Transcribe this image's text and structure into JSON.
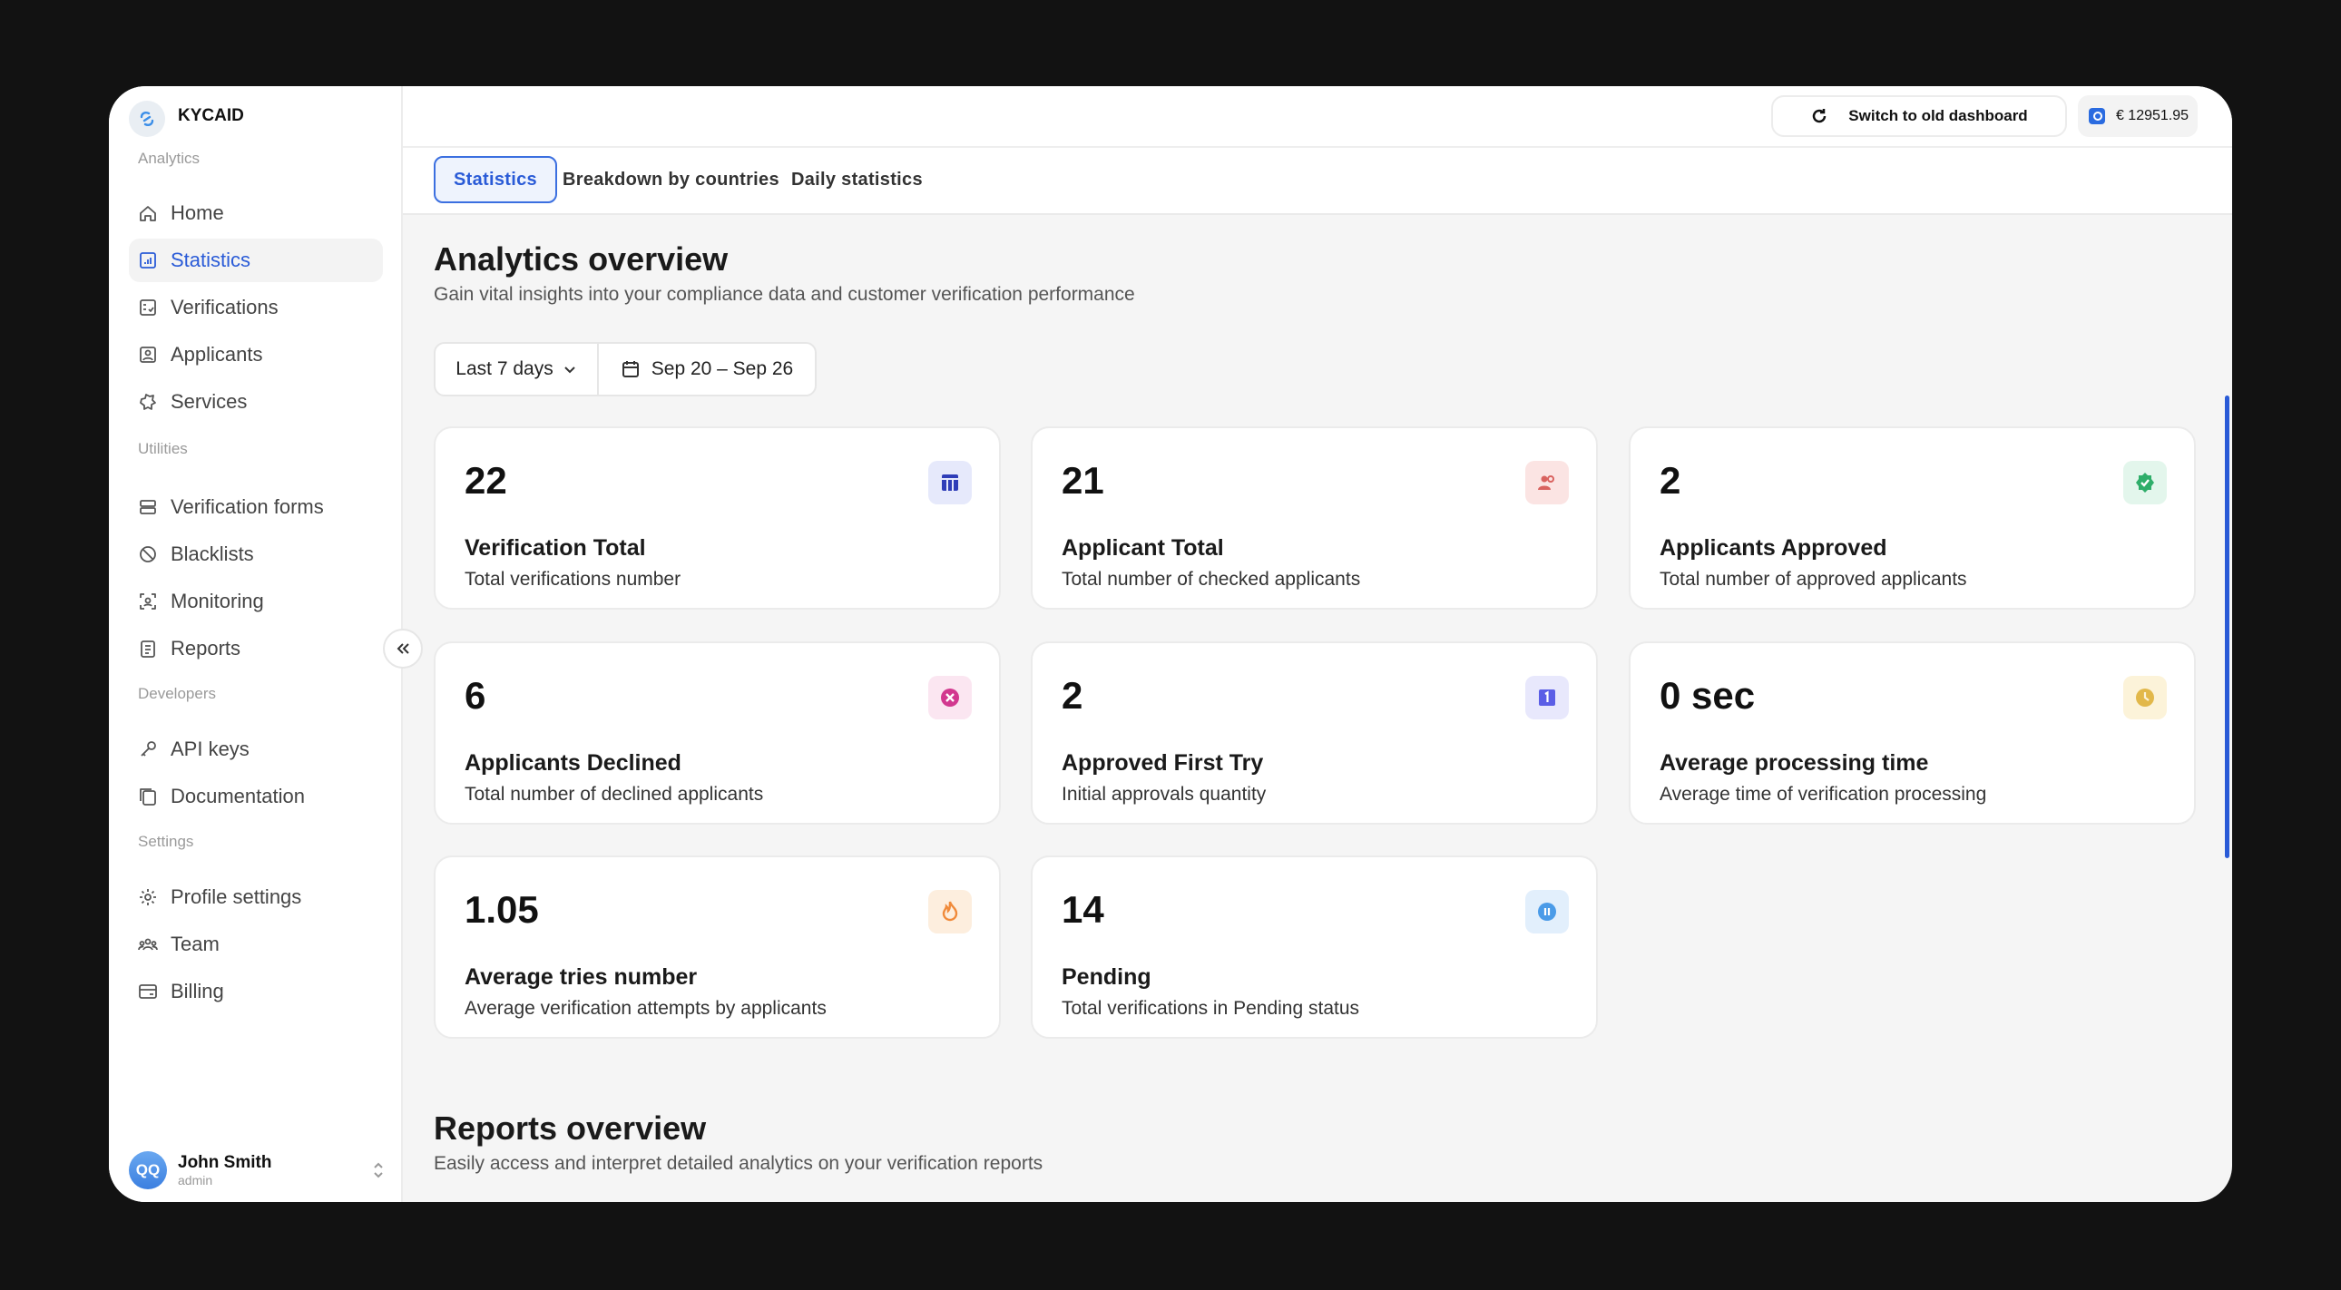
{
  "app": {
    "brand": "KYCAID"
  },
  "sidebar": {
    "sections": [
      {
        "label": "Analytics",
        "items": [
          {
            "label": "Home",
            "icon": "home-icon"
          },
          {
            "label": "Statistics",
            "icon": "statistics-icon",
            "active": true
          },
          {
            "label": "Verifications",
            "icon": "checklist-icon"
          },
          {
            "label": "Applicants",
            "icon": "applicant-icon"
          },
          {
            "label": "Services",
            "icon": "puzzle-icon"
          }
        ]
      },
      {
        "label": "Utilities",
        "items": [
          {
            "label": "Verification forms",
            "icon": "forms-icon"
          },
          {
            "label": "Blacklists",
            "icon": "block-icon"
          },
          {
            "label": "Monitoring",
            "icon": "monitoring-icon"
          },
          {
            "label": "Reports",
            "icon": "report-icon"
          }
        ]
      },
      {
        "label": "Developers",
        "items": [
          {
            "label": "API keys",
            "icon": "key-icon"
          },
          {
            "label": "Documentation",
            "icon": "docs-icon"
          }
        ]
      },
      {
        "label": "Settings",
        "items": [
          {
            "label": "Profile settings",
            "icon": "gear-icon"
          },
          {
            "label": "Team",
            "icon": "team-icon"
          },
          {
            "label": "Billing",
            "icon": "card-icon"
          }
        ]
      }
    ],
    "user": {
      "initials": "QQ",
      "name": "John Smith",
      "role": "admin"
    }
  },
  "header": {
    "switch_label": "Switch to old dashboard",
    "balance": "€ 12951.95"
  },
  "tabs": [
    {
      "label": "Statistics",
      "active": true
    },
    {
      "label": "Breakdown by countries"
    },
    {
      "label": "Daily statistics"
    }
  ],
  "main": {
    "title": "Analytics overview",
    "subtitle": "Gain vital insights into your compliance data and customer verification performance",
    "range": "Last 7 days",
    "dates": "Sep 20 – Sep 26",
    "cards": [
      {
        "value": "22",
        "title": "Verification Total",
        "desc": "Total verifications number",
        "icon": "table-icon",
        "color": "#2f3db8",
        "bg": "#e6e9fb"
      },
      {
        "value": "21",
        "title": "Applicant Total",
        "desc": "Total number of checked applicants",
        "icon": "users-icon",
        "color": "#d9625f",
        "bg": "#fbe4e3"
      },
      {
        "value": "2",
        "title": "Applicants Approved",
        "desc": "Total number of approved applicants",
        "icon": "verified-icon",
        "color": "#2fae6a",
        "bg": "#e3f6ec"
      },
      {
        "value": "6",
        "title": "Applicants Declined",
        "desc": "Total number of declined applicants",
        "icon": "declined-icon",
        "color": "#d2388f",
        "bg": "#fbe6f1"
      },
      {
        "value": "2",
        "title": "Approved First Try",
        "desc": "Initial approvals quantity",
        "icon": "first-try-icon",
        "color": "#5b5ee6",
        "bg": "#e8e8fc"
      },
      {
        "value": "0 sec",
        "title": "Average processing time",
        "desc": "Average time of verification processing",
        "icon": "clock-icon",
        "color": "#e2b84a",
        "bg": "#fcf3d9"
      },
      {
        "value": "1.05",
        "title": "Average tries number",
        "desc": "Average verification attempts by applicants",
        "icon": "fire-icon",
        "color": "#f08a3a",
        "bg": "#fdeede"
      },
      {
        "value": "14",
        "title": "Pending",
        "desc": "Total verifications in Pending status",
        "icon": "pause-icon",
        "color": "#4a9be8",
        "bg": "#e2effc"
      }
    ],
    "reports_title": "Reports overview",
    "reports_subtitle": "Easily access and interpret detailed analytics on your verification reports"
  }
}
